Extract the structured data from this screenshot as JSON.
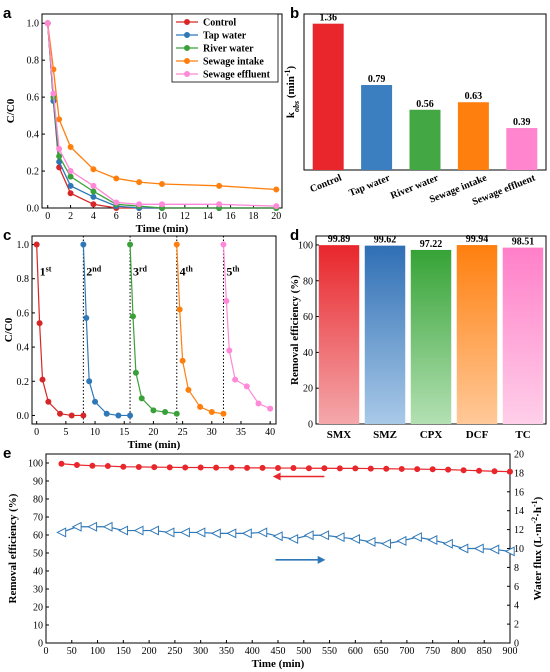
{
  "chart_data": [
    {
      "panel": "a",
      "type": "line",
      "xlabel": "Time (min)",
      "ylabel": "C/C0",
      "xlim": [
        -0.5,
        20.5
      ],
      "ylim": [
        0,
        1.05
      ],
      "xticks": [
        0,
        2,
        4,
        6,
        8,
        10,
        12,
        14,
        16,
        18,
        20
      ],
      "yticks": [
        0.0,
        0.2,
        0.4,
        0.6,
        0.8,
        1.0
      ],
      "x": [
        0,
        0.5,
        1,
        2,
        4,
        6,
        8,
        10,
        15,
        20
      ],
      "legend_position": "top-right",
      "series": [
        {
          "name": "Control",
          "color": "#d62728",
          "marker": "circle",
          "values": [
            1.0,
            0.58,
            0.22,
            0.08,
            0.02,
            0.0,
            0.0,
            0.0,
            0.0,
            0.0
          ]
        },
        {
          "name": "Tap water",
          "color": "#2f78b8",
          "marker": "circle",
          "values": [
            1.0,
            0.58,
            0.25,
            0.12,
            0.06,
            0.01,
            0.0,
            0.0,
            0.0,
            0.0
          ]
        },
        {
          "name": "River water",
          "color": "#3aa03a",
          "marker": "circle",
          "values": [
            1.0,
            0.6,
            0.28,
            0.17,
            0.09,
            0.02,
            0.01,
            0.0,
            0.0,
            0.0
          ]
        },
        {
          "name": "Sewage intake",
          "color": "#ff7f0e",
          "marker": "circle",
          "values": [
            1.0,
            0.75,
            0.48,
            0.33,
            0.21,
            0.16,
            0.14,
            0.13,
            0.12,
            0.1
          ]
        },
        {
          "name": "Sewage effluent",
          "color": "#ff88d8",
          "marker": "circle",
          "values": [
            1.0,
            0.62,
            0.32,
            0.2,
            0.12,
            0.03,
            0.02,
            0.02,
            0.02,
            0.01
          ]
        }
      ]
    },
    {
      "panel": "b",
      "type": "bar",
      "ylabel_parts": [
        "k",
        "obs",
        " (min",
        "-1",
        ")"
      ],
      "ylim": [
        0,
        1.45
      ],
      "categories": [
        "Control",
        "Tap water",
        "River water",
        "Sewage intake",
        "Sewage effluent"
      ],
      "values": [
        1.36,
        0.79,
        0.56,
        0.63,
        0.39
      ],
      "labels": [
        "1.36",
        "0.79",
        "0.56",
        "0.63",
        "0.39"
      ],
      "colors": [
        "#e8262b",
        "#3b7fc1",
        "#43a843",
        "#ff7f0e",
        "#ff85cf"
      ]
    },
    {
      "panel": "c",
      "type": "line",
      "xlabel": "Time (min)",
      "ylabel": "C/C0",
      "xlim": [
        -0.8,
        41
      ],
      "ylim": [
        -0.05,
        1.05
      ],
      "xticks": [
        0,
        5,
        10,
        15,
        20,
        25,
        30,
        35,
        40
      ],
      "yticks": [
        0.0,
        0.2,
        0.4,
        0.6,
        0.8,
        1.0
      ],
      "cycle_boundaries": [
        8,
        16,
        24,
        32
      ],
      "cycle_labels": [
        {
          "num": "1",
          "sup": "st",
          "x": 0.5,
          "y": 0.82
        },
        {
          "num": "2",
          "sup": "nd",
          "x": 8.5,
          "y": 0.82
        },
        {
          "num": "3",
          "sup": "rd",
          "x": 16.5,
          "y": 0.82
        },
        {
          "num": "4",
          "sup": "th",
          "x": 24.5,
          "y": 0.82
        },
        {
          "num": "5",
          "sup": "th",
          "x": 32.5,
          "y": 0.82
        }
      ],
      "series": [
        {
          "name": "",
          "color": "#d62728",
          "x": [
            0,
            0.5,
            1,
            2,
            4,
            6,
            8
          ],
          "values": [
            1.0,
            0.54,
            0.21,
            0.08,
            0.01,
            0.0,
            0.0
          ]
        },
        {
          "name": "",
          "color": "#2f78b8",
          "x": [
            8,
            8.5,
            9,
            10,
            12,
            14,
            16
          ],
          "values": [
            1.0,
            0.57,
            0.2,
            0.08,
            0.01,
            0.0,
            0.0
          ]
        },
        {
          "name": "",
          "color": "#3aa03a",
          "x": [
            16,
            16.5,
            17,
            18,
            20,
            22,
            24
          ],
          "values": [
            1.0,
            0.58,
            0.25,
            0.1,
            0.03,
            0.02,
            0.01
          ]
        },
        {
          "name": "",
          "color": "#ff7f0e",
          "x": [
            24,
            24.5,
            25,
            26,
            28,
            30,
            32
          ],
          "values": [
            1.0,
            0.62,
            0.32,
            0.15,
            0.05,
            0.02,
            0.01
          ]
        },
        {
          "name": "",
          "color": "#ff88d8",
          "x": [
            32,
            32.5,
            33,
            34,
            36,
            38,
            40
          ],
          "values": [
            1.0,
            0.67,
            0.38,
            0.21,
            0.17,
            0.07,
            0.04
          ]
        }
      ]
    },
    {
      "panel": "d",
      "type": "bar",
      "ylabel": "Removal efficiency (%)",
      "ylim": [
        0,
        105
      ],
      "yticks": [
        0,
        20,
        40,
        60,
        80,
        100
      ],
      "categories": [
        "SMX",
        "SMZ",
        "CPX",
        "DCF",
        "TC"
      ],
      "values": [
        99.89,
        99.62,
        97.22,
        99.94,
        98.51
      ],
      "labels": [
        "99.89",
        "99.62",
        "97.22",
        "99.94",
        "98.51"
      ],
      "colors_top": [
        "#e8262b",
        "#2f6fb5",
        "#36a336",
        "#ff7f0e",
        "#ff7fc8"
      ],
      "colors_bottom": [
        "#f4a8ab",
        "#a9c9e8",
        "#b3e0b3",
        "#ffc999",
        "#ffcfe9"
      ]
    },
    {
      "panel": "e",
      "type": "line",
      "xlabel": "Time (min)",
      "ylabel": "Removal efficiency (%)",
      "y2label_parts": [
        "Water flux (L·m",
        "-2",
        "·h",
        "-1",
        ")"
      ],
      "xlim": [
        0,
        900
      ],
      "xticks": [
        0,
        50,
        100,
        150,
        200,
        250,
        300,
        350,
        400,
        450,
        500,
        550,
        600,
        650,
        700,
        750,
        800,
        850,
        900
      ],
      "ylim": [
        0,
        105
      ],
      "yticks": [
        0,
        10,
        20,
        30,
        40,
        50,
        60,
        70,
        80,
        90,
        100
      ],
      "y2lim": [
        0,
        20
      ],
      "y2ticks": [
        0,
        2,
        4,
        6,
        8,
        10,
        12,
        14,
        16,
        18,
        20
      ],
      "series": [
        {
          "name": "Removal efficiency",
          "color": "#e8262b",
          "marker": "circle",
          "axis": "left",
          "x": [
            30,
            60,
            90,
            120,
            150,
            180,
            210,
            240,
            270,
            300,
            330,
            360,
            390,
            420,
            450,
            480,
            510,
            540,
            570,
            600,
            630,
            660,
            690,
            720,
            750,
            780,
            810,
            840,
            870,
            900
          ],
          "values": [
            99.6,
            98.9,
            98.5,
            98.3,
            97.9,
            97.8,
            97.7,
            97.6,
            97.5,
            97.5,
            97.4,
            97.4,
            97.3,
            97.3,
            97.2,
            97.2,
            97.1,
            97.1,
            97.0,
            97.0,
            96.9,
            96.8,
            96.7,
            96.6,
            96.5,
            96.3,
            96.0,
            95.7,
            95.4,
            95.2
          ]
        },
        {
          "name": "Water flux",
          "color": "#2f78b8",
          "marker": "triangle-left",
          "axis": "right",
          "x": [
            30,
            60,
            90,
            120,
            150,
            180,
            210,
            240,
            270,
            300,
            330,
            360,
            390,
            420,
            450,
            480,
            510,
            540,
            570,
            600,
            630,
            660,
            690,
            720,
            750,
            780,
            810,
            840,
            870,
            900
          ],
          "values": [
            11.7,
            12.3,
            12.3,
            12.3,
            11.9,
            11.9,
            11.9,
            11.7,
            11.7,
            11.7,
            11.6,
            11.6,
            11.6,
            11.7,
            11.3,
            11.0,
            11.4,
            11.4,
            11.2,
            11.0,
            10.7,
            10.5,
            10.8,
            11.2,
            10.9,
            10.5,
            10.0,
            10.0,
            9.9,
            9.7
          ]
        }
      ]
    }
  ],
  "panel_labels": {
    "a": "a",
    "b": "b",
    "c": "c",
    "d": "d",
    "e": "e"
  }
}
